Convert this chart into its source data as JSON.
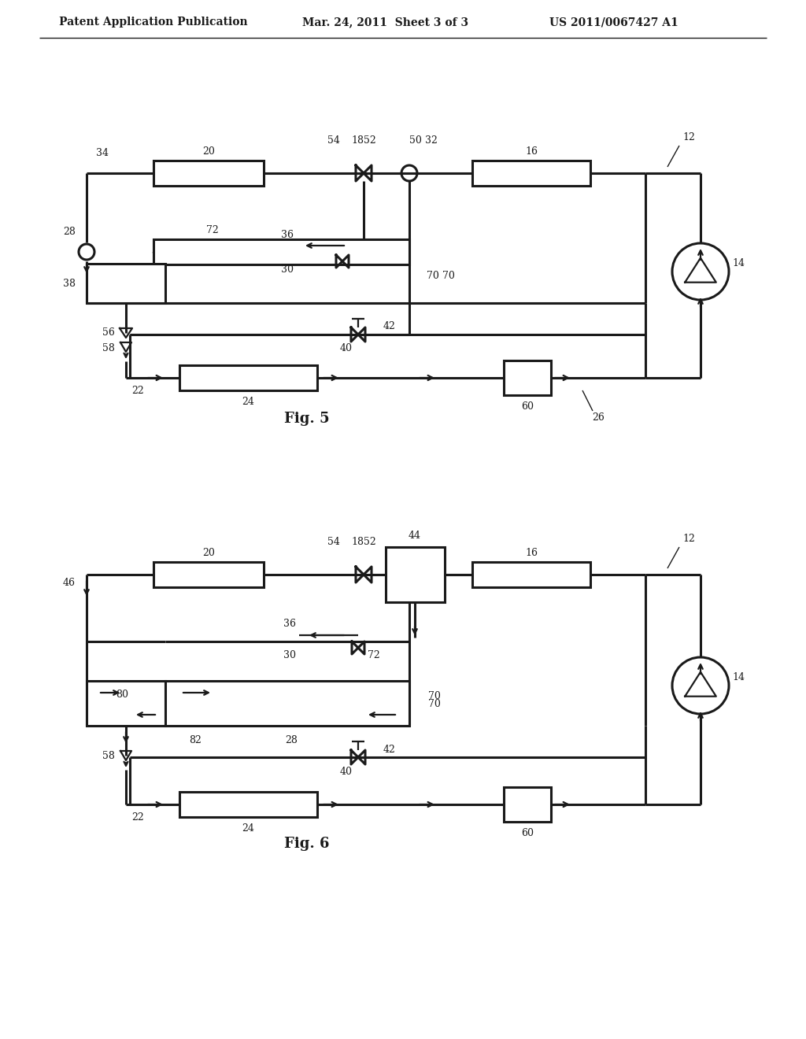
{
  "header_left": "Patent Application Publication",
  "header_mid": "Mar. 24, 2011  Sheet 3 of 3",
  "header_right": "US 2011/0067427 A1",
  "bg_color": "#ffffff",
  "lc": "#1a1a1a",
  "fig5_label": "Fig. 5",
  "fig6_label": "Fig. 6"
}
